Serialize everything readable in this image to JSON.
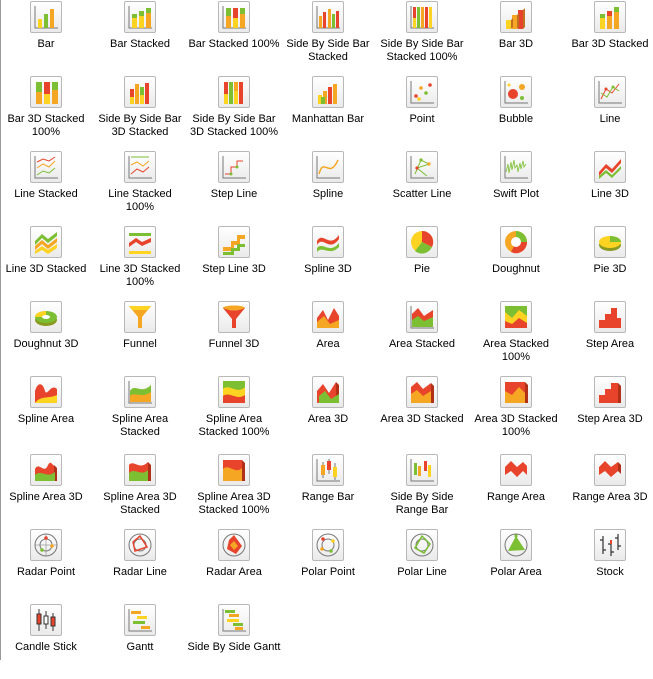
{
  "gallery": {
    "items": [
      {
        "label_lines": [
          "Bar"
        ],
        "icon": "bar-icon"
      },
      {
        "label_lines": [
          "Bar Stacked"
        ],
        "icon": "bar-stacked-icon"
      },
      {
        "label_lines": [
          "Bar Stacked 100%"
        ],
        "icon": "bar-stacked-100-icon"
      },
      {
        "label_lines": [
          "Side By Side Bar",
          "Stacked"
        ],
        "icon": "side-by-side-bar-stacked-icon"
      },
      {
        "label_lines": [
          "Side By Side Bar",
          "Stacked 100%"
        ],
        "icon": "side-by-side-bar-stacked-100-icon"
      },
      {
        "label_lines": [
          "Bar 3D"
        ],
        "icon": "bar-3d-icon"
      },
      {
        "label_lines": [
          "Bar 3D Stacked"
        ],
        "icon": "bar-3d-stacked-icon"
      },
      {
        "label_lines": [
          "Bar 3D Stacked",
          "100%"
        ],
        "icon": "bar-3d-stacked-100-icon"
      },
      {
        "label_lines": [
          "Side By Side Bar",
          "3D Stacked"
        ],
        "icon": "side-by-side-bar-3d-stacked-icon"
      },
      {
        "label_lines": [
          "Side By Side Bar",
          "3D Stacked 100%"
        ],
        "icon": "side-by-side-bar-3d-stacked-100-icon"
      },
      {
        "label_lines": [
          "Manhattan Bar"
        ],
        "icon": "manhattan-bar-icon"
      },
      {
        "label_lines": [
          "Point"
        ],
        "icon": "point-icon"
      },
      {
        "label_lines": [
          "Bubble"
        ],
        "icon": "bubble-icon"
      },
      {
        "label_lines": [
          "Line"
        ],
        "icon": "line-icon"
      },
      {
        "label_lines": [
          "Line Stacked"
        ],
        "icon": "line-stacked-icon"
      },
      {
        "label_lines": [
          "Line Stacked",
          "100%"
        ],
        "icon": "line-stacked-100-icon"
      },
      {
        "label_lines": [
          "Step Line"
        ],
        "icon": "step-line-icon"
      },
      {
        "label_lines": [
          "Spline"
        ],
        "icon": "spline-icon"
      },
      {
        "label_lines": [
          "Scatter Line"
        ],
        "icon": "scatter-line-icon"
      },
      {
        "label_lines": [
          "Swift Plot"
        ],
        "icon": "swift-plot-icon"
      },
      {
        "label_lines": [
          "Line 3D"
        ],
        "icon": "line-3d-icon"
      },
      {
        "label_lines": [
          "Line 3D Stacked"
        ],
        "icon": "line-3d-stacked-icon"
      },
      {
        "label_lines": [
          "Line 3D Stacked",
          "100%"
        ],
        "icon": "line-3d-stacked-100-icon"
      },
      {
        "label_lines": [
          "Step Line 3D"
        ],
        "icon": "step-line-3d-icon"
      },
      {
        "label_lines": [
          "Spline 3D"
        ],
        "icon": "spline-3d-icon"
      },
      {
        "label_lines": [
          "Pie"
        ],
        "icon": "pie-icon"
      },
      {
        "label_lines": [
          "Doughnut"
        ],
        "icon": "doughnut-icon"
      },
      {
        "label_lines": [
          "Pie 3D"
        ],
        "icon": "pie-3d-icon"
      },
      {
        "label_lines": [
          "Doughnut 3D"
        ],
        "icon": "doughnut-3d-icon"
      },
      {
        "label_lines": [
          "Funnel"
        ],
        "icon": "funnel-icon"
      },
      {
        "label_lines": [
          "Funnel 3D"
        ],
        "icon": "funnel-3d-icon"
      },
      {
        "label_lines": [
          "Area"
        ],
        "icon": "area-icon"
      },
      {
        "label_lines": [
          "Area Stacked"
        ],
        "icon": "area-stacked-icon"
      },
      {
        "label_lines": [
          "Area Stacked",
          "100%"
        ],
        "icon": "area-stacked-100-icon"
      },
      {
        "label_lines": [
          "Step Area"
        ],
        "icon": "step-area-icon"
      },
      {
        "label_lines": [
          "Spline Area"
        ],
        "icon": "spline-area-icon"
      },
      {
        "label_lines": [
          "Spline Area",
          "Stacked"
        ],
        "icon": "spline-area-stacked-icon"
      },
      {
        "label_lines": [
          "Spline Area",
          "Stacked 100%"
        ],
        "icon": "spline-area-stacked-100-icon"
      },
      {
        "label_lines": [
          "Area 3D"
        ],
        "icon": "area-3d-icon"
      },
      {
        "label_lines": [
          "Area 3D Stacked"
        ],
        "icon": "area-3d-stacked-icon"
      },
      {
        "label_lines": [
          "Area 3D Stacked",
          "100%"
        ],
        "icon": "area-3d-stacked-100-icon"
      },
      {
        "label_lines": [
          "Step Area 3D"
        ],
        "icon": "step-area-3d-icon"
      },
      {
        "label_lines": [
          "Spline Area 3D"
        ],
        "icon": "spline-area-3d-icon"
      },
      {
        "label_lines": [
          "Spline Area 3D",
          "Stacked"
        ],
        "icon": "spline-area-3d-stacked-icon"
      },
      {
        "label_lines": [
          "Spline Area 3D",
          "Stacked 100%"
        ],
        "icon": "spline-area-3d-stacked-100-icon"
      },
      {
        "label_lines": [
          "Range Bar"
        ],
        "icon": "range-bar-icon"
      },
      {
        "label_lines": [
          "Side By Side",
          "Range Bar"
        ],
        "icon": "side-by-side-range-bar-icon"
      },
      {
        "label_lines": [
          "Range Area"
        ],
        "icon": "range-area-icon"
      },
      {
        "label_lines": [
          "Range Area 3D"
        ],
        "icon": "range-area-3d-icon"
      },
      {
        "label_lines": [
          "Radar Point"
        ],
        "icon": "radar-point-icon"
      },
      {
        "label_lines": [
          "Radar Line"
        ],
        "icon": "radar-line-icon"
      },
      {
        "label_lines": [
          "Radar Area"
        ],
        "icon": "radar-area-icon"
      },
      {
        "label_lines": [
          "Polar Point"
        ],
        "icon": "polar-point-icon"
      },
      {
        "label_lines": [
          "Polar Line"
        ],
        "icon": "polar-line-icon"
      },
      {
        "label_lines": [
          "Polar Area"
        ],
        "icon": "polar-area-icon"
      },
      {
        "label_lines": [
          "Stock"
        ],
        "icon": "stock-icon"
      },
      {
        "label_lines": [
          "Candle Stick"
        ],
        "icon": "candle-stick-icon"
      },
      {
        "label_lines": [
          "Gantt"
        ],
        "icon": "gantt-icon"
      },
      {
        "label_lines": [
          "Side By Side Gantt"
        ],
        "icon": "side-by-side-gantt-icon"
      }
    ]
  },
  "colors": {
    "red": "#e8442c",
    "orange": "#f5a623",
    "yellow": "#ffd321",
    "green": "#7cbf32",
    "gray": "#777777",
    "border": "#b8b8b8"
  }
}
